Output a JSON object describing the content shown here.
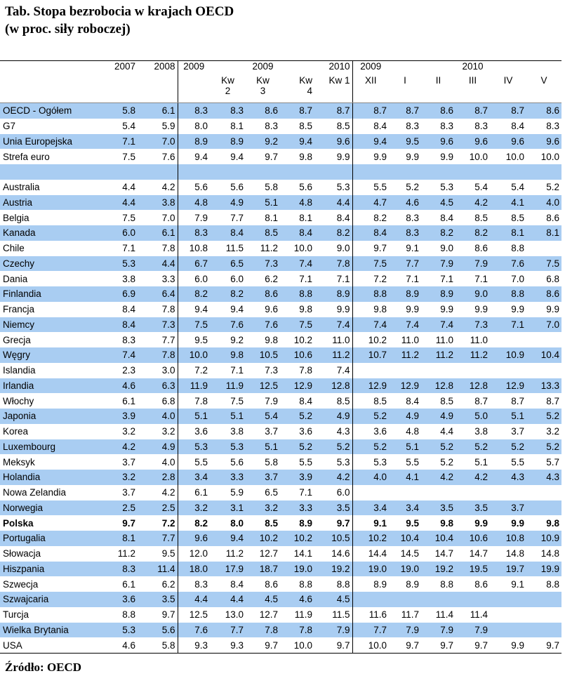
{
  "title_line1": "Tab. Stopa bezrobocia w krajach OECD",
  "title_line2": "(w proc. siły roboczej)",
  "source": "Źródło: OECD",
  "header": {
    "y2007": "2007",
    "y2008": "2008",
    "y2009a": "2009",
    "y2009b": "2009",
    "y2010a": "2010",
    "y2009c": "2009",
    "y2010b": "2010",
    "cols": [
      "",
      "",
      "",
      "Kw\n2",
      "Kw\n3",
      "Kw\n4",
      "Kw 1",
      "XII",
      "I",
      "II",
      "III",
      "IV",
      "V"
    ]
  },
  "rows": [
    {
      "name": "OECD - Ogółem",
      "blue": true,
      "values": [
        "5.8",
        "6.1",
        "8.3",
        "8.3",
        "8.6",
        "8.7",
        "8.7",
        "8.7",
        "8.7",
        "8.6",
        "8.7",
        "8.7",
        "8.6"
      ]
    },
    {
      "name": "G7",
      "blue": false,
      "values": [
        "5.4",
        "5.9",
        "8.0",
        "8.1",
        "8.3",
        "8.5",
        "8.5",
        "8.4",
        "8.3",
        "8.3",
        "8.3",
        "8.4",
        "8.3"
      ]
    },
    {
      "name": "Unia Europejska",
      "blue": true,
      "values": [
        "7.1",
        "7.0",
        "8.9",
        "8.9",
        "9.2",
        "9.4",
        "9.6",
        "9.4",
        "9.5",
        "9.6",
        "9.6",
        "9.6",
        "9.6"
      ]
    },
    {
      "name": "Strefa euro",
      "blue": false,
      "values": [
        "7.5",
        "7.6",
        "9.4",
        "9.4",
        "9.7",
        "9.8",
        "9.9",
        "9.9",
        "9.9",
        "9.9",
        "10.0",
        "10.0",
        "10.0"
      ]
    },
    {
      "name": "",
      "blue": true,
      "values": [
        "",
        "",
        "",
        "",
        "",
        "",
        "",
        "",
        "",
        "",
        "",
        "",
        ""
      ]
    },
    {
      "name": "Australia",
      "blue": false,
      "values": [
        "4.4",
        "4.2",
        "5.6",
        "5.6",
        "5.8",
        "5.6",
        "5.3",
        "5.5",
        "5.2",
        "5.3",
        "5.4",
        "5.4",
        "5.2"
      ]
    },
    {
      "name": "Austria",
      "blue": true,
      "values": [
        "4.4",
        "3.8",
        "4.8",
        "4.9",
        "5.1",
        "4.8",
        "4.4",
        "4.7",
        "4.6",
        "4.5",
        "4.2",
        "4.1",
        "4.0"
      ]
    },
    {
      "name": "Belgia",
      "blue": false,
      "values": [
        "7.5",
        "7.0",
        "7.9",
        "7.7",
        "8.1",
        "8.1",
        "8.4",
        "8.2",
        "8.3",
        "8.4",
        "8.5",
        "8.5",
        "8.6"
      ]
    },
    {
      "name": "Kanada",
      "blue": true,
      "values": [
        "6.0",
        "6.1",
        "8.3",
        "8.4",
        "8.5",
        "8.4",
        "8.2",
        "8.4",
        "8.3",
        "8.2",
        "8.2",
        "8.1",
        "8.1"
      ]
    },
    {
      "name": "Chile",
      "blue": false,
      "values": [
        "7.1",
        "7.8",
        "10.8",
        "11.5",
        "11.2",
        "10.0",
        "9.0",
        "9.7",
        "9.1",
        "9.0",
        "8.6",
        "8.8",
        ""
      ]
    },
    {
      "name": "Czechy",
      "blue": true,
      "values": [
        "5.3",
        "4.4",
        "6.7",
        "6.5",
        "7.3",
        "7.4",
        "7.8",
        "7.5",
        "7.7",
        "7.9",
        "7.9",
        "7.6",
        "7.5"
      ]
    },
    {
      "name": "Dania",
      "blue": false,
      "values": [
        "3.8",
        "3.3",
        "6.0",
        "6.0",
        "6.2",
        "7.1",
        "7.1",
        "7.2",
        "7.1",
        "7.1",
        "7.1",
        "7.0",
        "6.8"
      ]
    },
    {
      "name": "Finlandia",
      "blue": true,
      "values": [
        "6.9",
        "6.4",
        "8.2",
        "8.2",
        "8.6",
        "8.8",
        "8.9",
        "8.8",
        "8.9",
        "8.9",
        "9.0",
        "8.8",
        "8.6"
      ]
    },
    {
      "name": "Francja",
      "blue": false,
      "values": [
        "8.4",
        "7.8",
        "9.4",
        "9.4",
        "9.6",
        "9.8",
        "9.9",
        "9.8",
        "9.9",
        "9.9",
        "9.9",
        "9.9",
        "9.9"
      ]
    },
    {
      "name": "Niemcy",
      "blue": true,
      "values": [
        "8.4",
        "7.3",
        "7.5",
        "7.6",
        "7.6",
        "7.5",
        "7.4",
        "7.4",
        "7.4",
        "7.4",
        "7.3",
        "7.1",
        "7.0"
      ]
    },
    {
      "name": "Grecja",
      "blue": false,
      "values": [
        "8.3",
        "7.7",
        "9.5",
        "9.2",
        "9.8",
        "10.2",
        "11.0",
        "10.2",
        "11.0",
        "11.0",
        "11.0",
        "",
        ""
      ]
    },
    {
      "name": "Węgry",
      "blue": true,
      "values": [
        "7.4",
        "7.8",
        "10.0",
        "9.8",
        "10.5",
        "10.6",
        "11.2",
        "10.7",
        "11.2",
        "11.2",
        "11.2",
        "10.9",
        "10.4"
      ]
    },
    {
      "name": "Islandia",
      "blue": false,
      "values": [
        "2.3",
        "3.0",
        "7.2",
        "7.1",
        "7.3",
        "7.8",
        "7.4",
        "",
        "",
        "",
        "",
        "",
        ""
      ]
    },
    {
      "name": "Irlandia",
      "blue": true,
      "values": [
        "4.6",
        "6.3",
        "11.9",
        "11.9",
        "12.5",
        "12.9",
        "12.8",
        "12.9",
        "12.9",
        "12.8",
        "12.8",
        "12.9",
        "13.3"
      ]
    },
    {
      "name": "Włochy",
      "blue": false,
      "values": [
        "6.1",
        "6.8",
        "7.8",
        "7.5",
        "7.9",
        "8.4",
        "8.5",
        "8.5",
        "8.4",
        "8.5",
        "8.7",
        "8.7",
        "8.7"
      ]
    },
    {
      "name": "Japonia",
      "blue": true,
      "values": [
        "3.9",
        "4.0",
        "5.1",
        "5.1",
        "5.4",
        "5.2",
        "4.9",
        "5.2",
        "4.9",
        "4.9",
        "5.0",
        "5.1",
        "5.2"
      ]
    },
    {
      "name": "Korea",
      "blue": false,
      "values": [
        "3.2",
        "3.2",
        "3.6",
        "3.8",
        "3.7",
        "3.6",
        "4.3",
        "3.6",
        "4.8",
        "4.4",
        "3.8",
        "3.7",
        "3.2"
      ]
    },
    {
      "name": "Luxembourg",
      "blue": true,
      "values": [
        "4.2",
        "4.9",
        "5.3",
        "5.3",
        "5.1",
        "5.2",
        "5.2",
        "5.2",
        "5.1",
        "5.2",
        "5.2",
        "5.2",
        "5.2"
      ]
    },
    {
      "name": "Meksyk",
      "blue": false,
      "values": [
        "3.7",
        "4.0",
        "5.5",
        "5.6",
        "5.8",
        "5.5",
        "5.3",
        "5.3",
        "5.5",
        "5.2",
        "5.1",
        "5.5",
        "5.7"
      ]
    },
    {
      "name": "Holandia",
      "blue": true,
      "values": [
        "3.2",
        "2.8",
        "3.4",
        "3.3",
        "3.7",
        "3.9",
        "4.2",
        "4.0",
        "4.1",
        "4.2",
        "4.2",
        "4.3",
        "4.3"
      ]
    },
    {
      "name": "Nowa Zelandia",
      "blue": false,
      "values": [
        "3.7",
        "4.2",
        "6.1",
        "5.9",
        "6.5",
        "7.1",
        "6.0",
        "",
        "",
        "",
        "",
        "",
        ""
      ]
    },
    {
      "name": "Norwegia",
      "blue": true,
      "values": [
        "2.5",
        "2.5",
        "3.2",
        "3.1",
        "3.2",
        "3.3",
        "3.5",
        "3.4",
        "3.4",
        "3.5",
        "3.5",
        "3.7",
        ""
      ]
    },
    {
      "name": "Polska",
      "blue": false,
      "bold": true,
      "values": [
        "9.7",
        "7.2",
        "8.2",
        "8.0",
        "8.5",
        "8.9",
        "9.7",
        "9.1",
        "9.5",
        "9.8",
        "9.9",
        "9.9",
        "9.8"
      ]
    },
    {
      "name": "Portugalia",
      "blue": true,
      "values": [
        "8.1",
        "7.7",
        "9.6",
        "9.4",
        "10.2",
        "10.2",
        "10.5",
        "10.2",
        "10.4",
        "10.4",
        "10.6",
        "10.8",
        "10.9"
      ]
    },
    {
      "name": "Słowacja",
      "blue": false,
      "values": [
        "11.2",
        "9.5",
        "12.0",
        "11.2",
        "12.7",
        "14.1",
        "14.6",
        "14.4",
        "14.5",
        "14.7",
        "14.7",
        "14.8",
        "14.8"
      ]
    },
    {
      "name": "Hiszpania",
      "blue": true,
      "values": [
        "8.3",
        "11.4",
        "18.0",
        "17.9",
        "18.7",
        "19.0",
        "19.2",
        "19.0",
        "19.0",
        "19.2",
        "19.5",
        "19.7",
        "19.9"
      ]
    },
    {
      "name": "Szwecja",
      "blue": false,
      "values": [
        "6.1",
        "6.2",
        "8.3",
        "8.4",
        "8.6",
        "8.8",
        "8.8",
        "8.9",
        "8.9",
        "8.8",
        "8.6",
        "9.1",
        "8.8"
      ]
    },
    {
      "name": "Szwajcaria",
      "blue": true,
      "values": [
        "3.6",
        "3.5",
        "4.4",
        "4.4",
        "4.5",
        "4.6",
        "4.5",
        "",
        "",
        "",
        "",
        "",
        ""
      ]
    },
    {
      "name": "Turcja",
      "blue": false,
      "values": [
        "8.8",
        "9.7",
        "12.5",
        "13.0",
        "12.7",
        "11.9",
        "11.5",
        "11.6",
        "11.7",
        "11.4",
        "11.4",
        "",
        ""
      ]
    },
    {
      "name": "Wielka Brytania",
      "blue": true,
      "values": [
        "5.3",
        "5.6",
        "7.6",
        "7.7",
        "7.8",
        "7.8",
        "7.9",
        "7.7",
        "7.9",
        "7.9",
        "7.9",
        "",
        ""
      ]
    },
    {
      "name": "USA",
      "blue": false,
      "values": [
        "4.6",
        "5.8",
        "9.3",
        "9.3",
        "9.7",
        "10.0",
        "9.7",
        "10.0",
        "9.7",
        "9.7",
        "9.7",
        "9.9",
        "9.7"
      ]
    }
  ]
}
